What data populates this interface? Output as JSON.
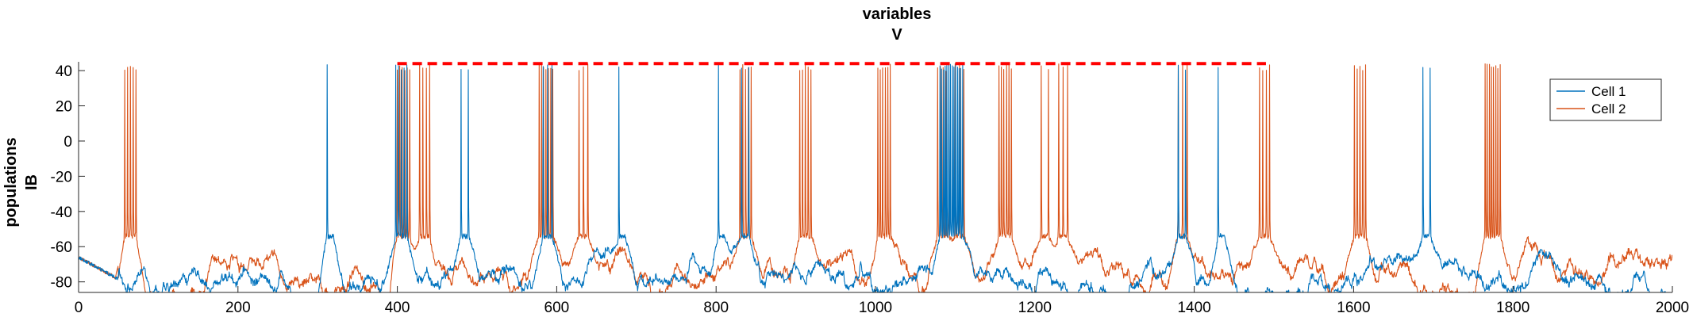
{
  "chart_data": {
    "type": "line",
    "title_lines": [
      "variables",
      "V"
    ],
    "ylabel_lines": [
      "populations",
      "IB"
    ],
    "xlabel": "",
    "xlim": [
      0,
      2000
    ],
    "ylim": [
      -86,
      45
    ],
    "x_ticks": [
      0,
      200,
      400,
      600,
      800,
      1000,
      1200,
      1400,
      1600,
      1800,
      2000
    ],
    "y_ticks": [
      -80,
      -60,
      -40,
      -20,
      0,
      20,
      40
    ],
    "grid": false,
    "legend_position": "top-right",
    "baseline_mV": -76,
    "spike_peak_mV": 44,
    "series": [
      {
        "name": "Cell 1",
        "color": "#0072BD",
        "bursts": [
          {
            "t": 312,
            "n": 1
          },
          {
            "t": 398,
            "n": 5
          },
          {
            "t": 480,
            "n": 2
          },
          {
            "t": 583,
            "n": 3
          },
          {
            "t": 678,
            "n": 1
          },
          {
            "t": 803,
            "n": 1
          },
          {
            "t": 832,
            "n": 2
          },
          {
            "t": 1081,
            "n": 14
          },
          {
            "t": 1380,
            "n": 2
          },
          {
            "t": 1430,
            "n": 1
          },
          {
            "t": 1687,
            "n": 2
          }
        ]
      },
      {
        "name": "Cell 2",
        "color": "#D95319",
        "bursts": [
          {
            "t": 58,
            "n": 5
          },
          {
            "t": 400,
            "n": 6
          },
          {
            "t": 428,
            "n": 4
          },
          {
            "t": 578,
            "n": 7
          },
          {
            "t": 628,
            "n": 3
          },
          {
            "t": 830,
            "n": 5
          },
          {
            "t": 905,
            "n": 5
          },
          {
            "t": 1003,
            "n": 6
          },
          {
            "t": 1078,
            "n": 5
          },
          {
            "t": 1100,
            "n": 3
          },
          {
            "t": 1155,
            "n": 6
          },
          {
            "t": 1208,
            "n": 2
          },
          {
            "t": 1230,
            "n": 3
          },
          {
            "t": 1380,
            "n": 3
          },
          {
            "t": 1482,
            "n": 4
          },
          {
            "t": 1601,
            "n": 5
          },
          {
            "t": 1765,
            "n": 8
          }
        ]
      }
    ],
    "annotations": [
      {
        "type": "dashed-line",
        "color": "#FF0000",
        "x0": 400,
        "x1": 1490,
        "y": 44
      }
    ]
  }
}
